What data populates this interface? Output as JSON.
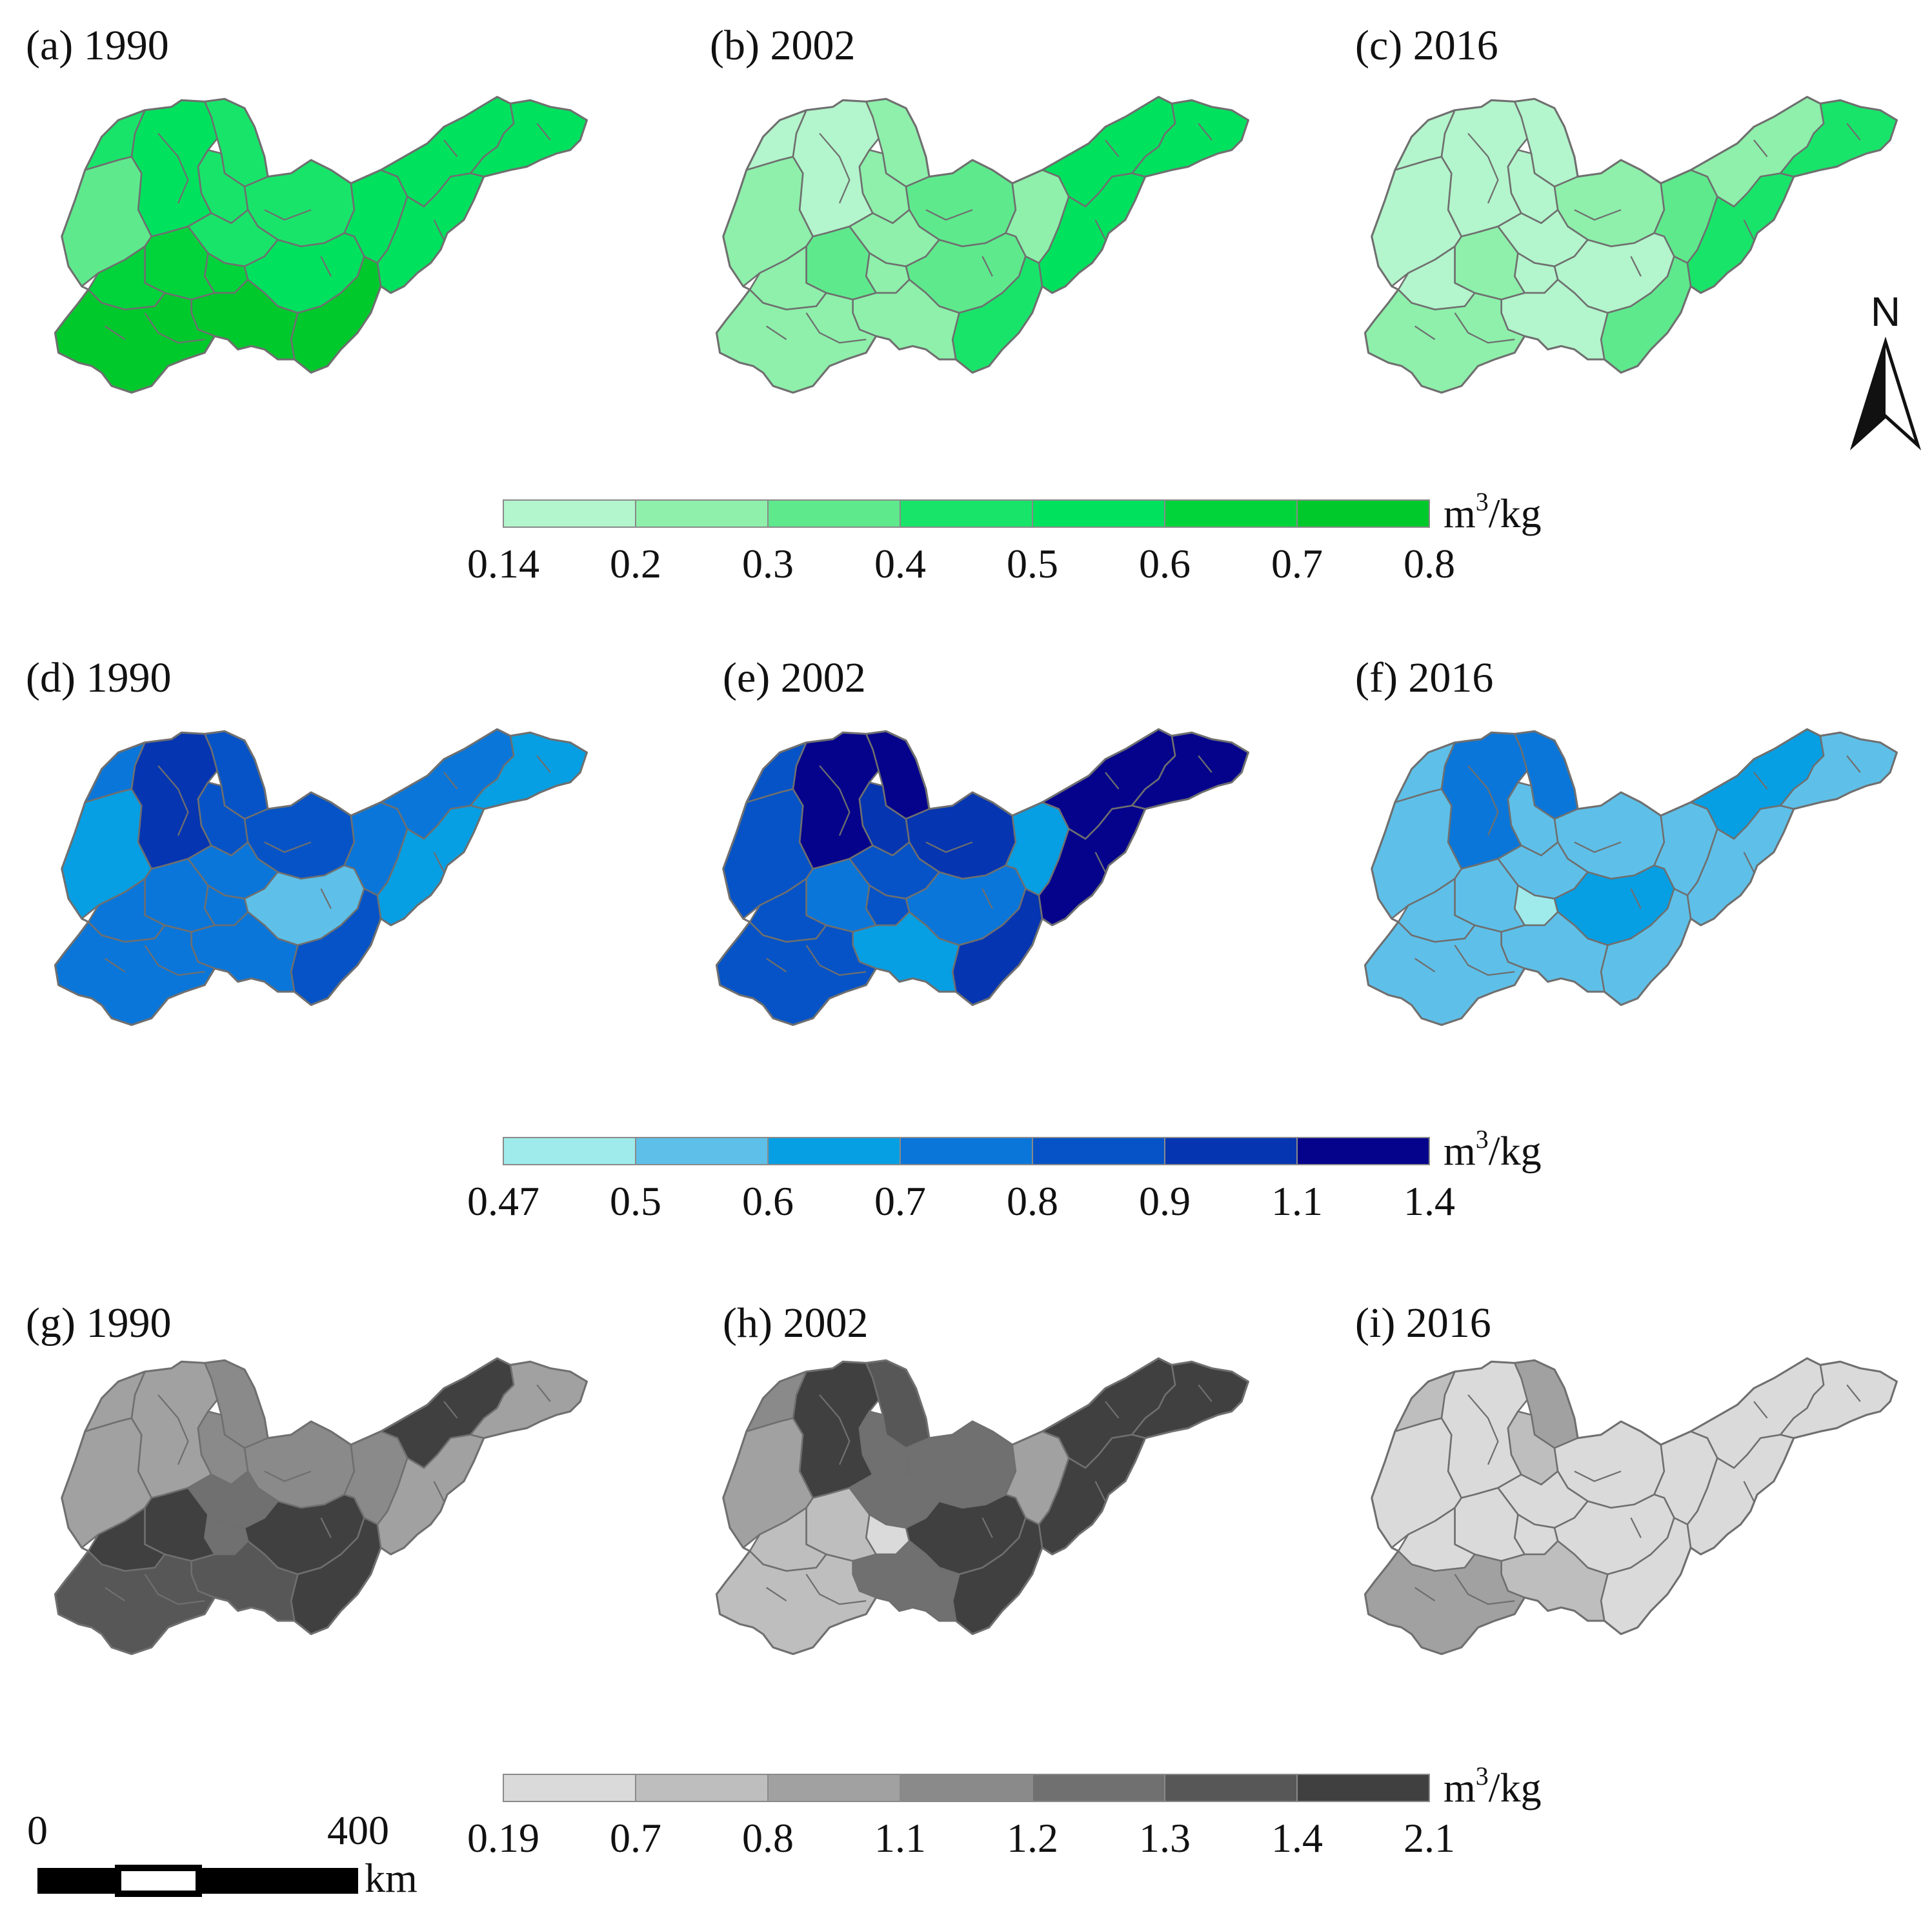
{
  "figure": {
    "rows": [
      {
        "id": "green",
        "legend": {
          "unit_base": "m",
          "unit_sup": "3",
          "unit_rest": "/kg",
          "ticks": [
            "0.14",
            "0.2",
            "0.3",
            "0.4",
            "0.5",
            "0.6",
            "0.7",
            "0.8"
          ],
          "colors": [
            "#b3f5cc",
            "#8ef0ab",
            "#5ee98d",
            "#19e46a",
            "#00e15e",
            "#00d43a",
            "#00c92c"
          ]
        },
        "panels": [
          {
            "label": "(a) 1990",
            "class_index": [
              2,
              4,
              3,
              3,
              3,
              4,
              3,
              3,
              5,
              5,
              5,
              4,
              6,
              6,
              6,
              4,
              4
            ]
          },
          {
            "label": "(b) 2002",
            "class_index": [
              1,
              0,
              1,
              1,
              2,
              1,
              0,
              1,
              1,
              2,
              1,
              2,
              3,
              1,
              1,
              4,
              4
            ]
          },
          {
            "label": "(c) 2016",
            "class_index": [
              0,
              0,
              0,
              0,
              1,
              2,
              0,
              0,
              0,
              1,
              0,
              0,
              2,
              0,
              1,
              1,
              3
            ]
          }
        ]
      },
      {
        "id": "blue",
        "legend": {
          "unit_base": "m",
          "unit_sup": "3",
          "unit_rest": "/kg",
          "ticks": [
            "0.47",
            "0.5",
            "0.6",
            "0.7",
            "0.8",
            "0.9",
            "1.1",
            "1.4"
          ],
          "colors": [
            "#9febeb",
            "#5ec0e9",
            "#069fe3",
            "#0a76d9",
            "#0553c6",
            "#0535b0",
            "#05038b"
          ]
        },
        "panels": [
          {
            "label": "(d) 1990",
            "class_index": [
              2,
              5,
              4,
              4,
              4,
              3,
              3,
              3,
              3,
              3,
              3,
              1,
              4,
              3,
              3,
              3,
              2
            ]
          },
          {
            "label": "(e) 2002",
            "class_index": [
              4,
              6,
              6,
              5,
              5,
              2,
              4,
              4,
              4,
              3,
              4,
              3,
              5,
              2,
              4,
              6,
              6
            ]
          },
          {
            "label": "(f) 2016",
            "class_index": [
              1,
              3,
              3,
              1,
              1,
              1,
              1,
              1,
              0,
              1,
              1,
              2,
              1,
              1,
              1,
              2,
              1
            ]
          }
        ]
      },
      {
        "id": "gray",
        "legend": {
          "unit_base": "m",
          "unit_sup": "3",
          "unit_rest": "/kg",
          "ticks": [
            "0.19",
            "0.7",
            "0.8",
            "1.1",
            "1.2",
            "1.3",
            "1.4",
            "2.1"
          ],
          "colors": [
            "#dadada",
            "#bebebe",
            "#a1a1a1",
            "#8a8a8a",
            "#707070",
            "#575757",
            "#404040"
          ]
        },
        "panels": [
          {
            "label": "(g) 1990",
            "class_index": [
              2,
              2,
              3,
              3,
              3,
              3,
              2,
              4,
              4,
              6,
              6,
              6,
              6,
              5,
              5,
              6,
              2
            ]
          },
          {
            "label": "(h) 2002",
            "class_index": [
              2,
              6,
              5,
              4,
              4,
              2,
              3,
              4,
              0,
              1,
              1,
              6,
              6,
              4,
              1,
              6,
              6
            ]
          },
          {
            "label": "(i) 2016",
            "class_index": [
              0,
              0,
              2,
              1,
              0,
              0,
              1,
              0,
              0,
              0,
              0,
              0,
              0,
              1,
              2,
              0,
              0
            ]
          }
        ]
      }
    ],
    "north_arrow": {
      "label": "N"
    },
    "scale_bar": {
      "start": "0",
      "end": "400",
      "unit": "km"
    }
  }
}
